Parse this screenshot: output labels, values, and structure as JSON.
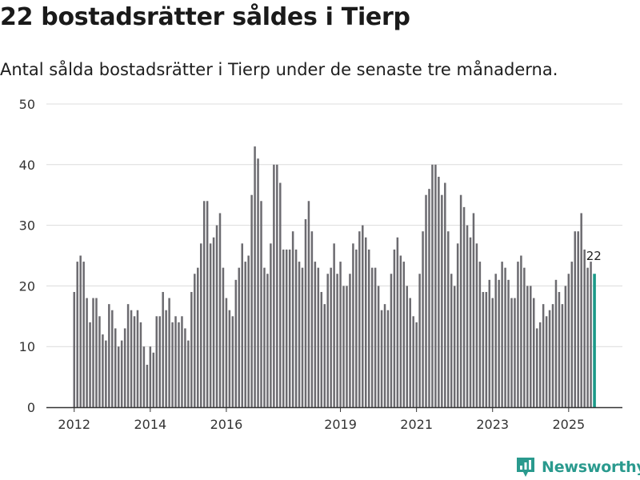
{
  "header": {
    "title": "22 bostadsrätter såldes i Tierp",
    "subtitle": "Antal sålda bostadsrätter i Tierp under de senaste tre månaderna."
  },
  "brand": {
    "name": "Newsworthy"
  },
  "colors": {
    "bar": "#6c6b70",
    "highlight": "#1a9988",
    "grid": "#dcdcdc",
    "axis": "#333333",
    "brand": "#2a9a8e"
  },
  "chart_data": {
    "type": "bar",
    "title": "22 bostadsrätter såldes i Tierp",
    "subtitle": "Antal sålda bostadsrätter i Tierp under de senaste tre månaderna.",
    "xlabel": "",
    "ylabel": "",
    "ylim": [
      0,
      50
    ],
    "yticks": [
      0,
      10,
      20,
      30,
      40,
      50
    ],
    "xticks": [
      {
        "label": "2012",
        "index": 0
      },
      {
        "label": "2014",
        "index": 24
      },
      {
        "label": "2016",
        "index": 48
      },
      {
        "label": "2019",
        "index": 84
      },
      {
        "label": "2021",
        "index": 108
      },
      {
        "label": "2023",
        "index": 132
      },
      {
        "label": "2025",
        "index": 156
      }
    ],
    "grid": true,
    "highlight_label": "22",
    "values": [
      19,
      24,
      25,
      24,
      18,
      14,
      18,
      18,
      15,
      12,
      11,
      17,
      16,
      13,
      10,
      11,
      13,
      17,
      16,
      15,
      16,
      14,
      10,
      7,
      10,
      9,
      15,
      15,
      19,
      16,
      18,
      14,
      15,
      14,
      15,
      13,
      11,
      19,
      22,
      23,
      27,
      34,
      34,
      27,
      28,
      30,
      32,
      23,
      18,
      16,
      15,
      21,
      23,
      27,
      24,
      25,
      35,
      43,
      41,
      34,
      23,
      22,
      27,
      40,
      40,
      37,
      26,
      26,
      26,
      29,
      26,
      24,
      23,
      31,
      34,
      29,
      24,
      23,
      19,
      17,
      22,
      23,
      27,
      22,
      24,
      20,
      20,
      22,
      27,
      26,
      29,
      30,
      28,
      26,
      23,
      23,
      20,
      16,
      17,
      16,
      22,
      26,
      28,
      25,
      24,
      20,
      18,
      15,
      14,
      22,
      29,
      35,
      36,
      40,
      40,
      38,
      35,
      37,
      29,
      22,
      20,
      27,
      35,
      33,
      30,
      28,
      32,
      27,
      24,
      19,
      19,
      21,
      18,
      22,
      21,
      24,
      23,
      21,
      18,
      18,
      24,
      25,
      23,
      20,
      20,
      18,
      13,
      14,
      17,
      15,
      16,
      17,
      21,
      19,
      17,
      20,
      22,
      24,
      29,
      29,
      32,
      26,
      23,
      24,
      22
    ]
  }
}
